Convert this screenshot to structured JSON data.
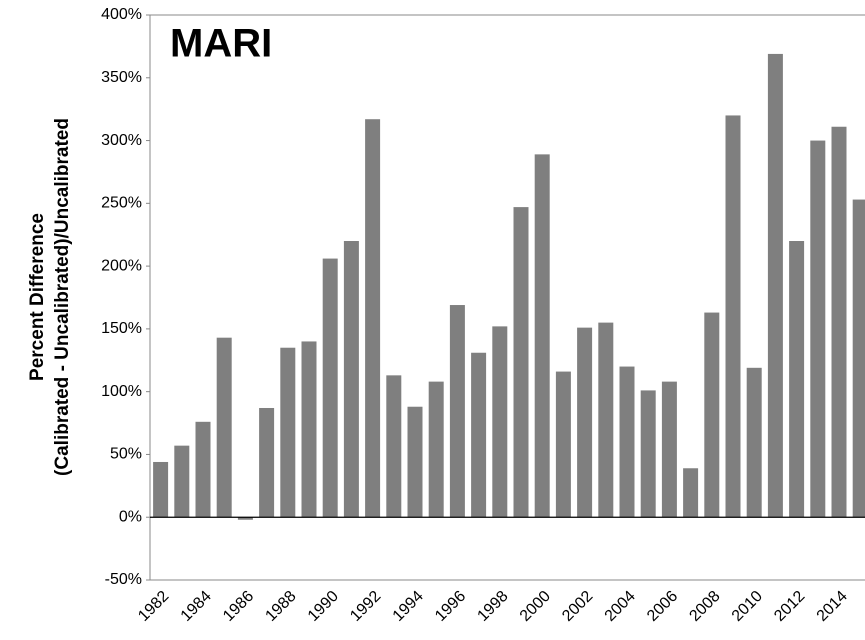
{
  "chart_data": {
    "type": "bar",
    "title": "MARI",
    "ylabel": [
      "Percent Difference",
      "(Calibrated - Uncalibrated)/Uncalibrated"
    ],
    "categories": [
      "1982",
      null,
      "1984",
      null,
      "1986",
      null,
      "1988",
      null,
      "1990",
      null,
      "1992",
      null,
      "1994",
      null,
      "1996",
      null,
      "1998",
      null,
      "2000",
      null,
      "2002",
      null,
      "2004",
      null,
      "2006",
      null,
      "2008",
      null,
      "2010",
      null,
      "2012",
      null,
      "2014",
      null
    ],
    "values": [
      44,
      57,
      76,
      143,
      -2,
      87,
      135,
      140,
      206,
      220,
      317,
      113,
      88,
      108,
      169,
      131,
      152,
      247,
      289,
      116,
      151,
      155,
      120,
      101,
      108,
      39,
      163,
      320,
      119,
      369,
      220,
      300,
      311,
      253
    ],
    "color": "#7f7f7f",
    "ylim": [
      -50,
      400
    ],
    "yticks": [
      {
        "value": -50,
        "label": "-50%"
      },
      {
        "value": 0,
        "label": "0%"
      },
      {
        "value": 50,
        "label": "50%"
      },
      {
        "value": 100,
        "label": "100%"
      },
      {
        "value": 150,
        "label": "150%"
      },
      {
        "value": 200,
        "label": "200%"
      },
      {
        "value": 250,
        "label": "250%"
      },
      {
        "value": 300,
        "label": "300%"
      },
      {
        "value": 350,
        "label": "350%"
      },
      {
        "value": 400,
        "label": "400%"
      }
    ],
    "grid": false
  }
}
